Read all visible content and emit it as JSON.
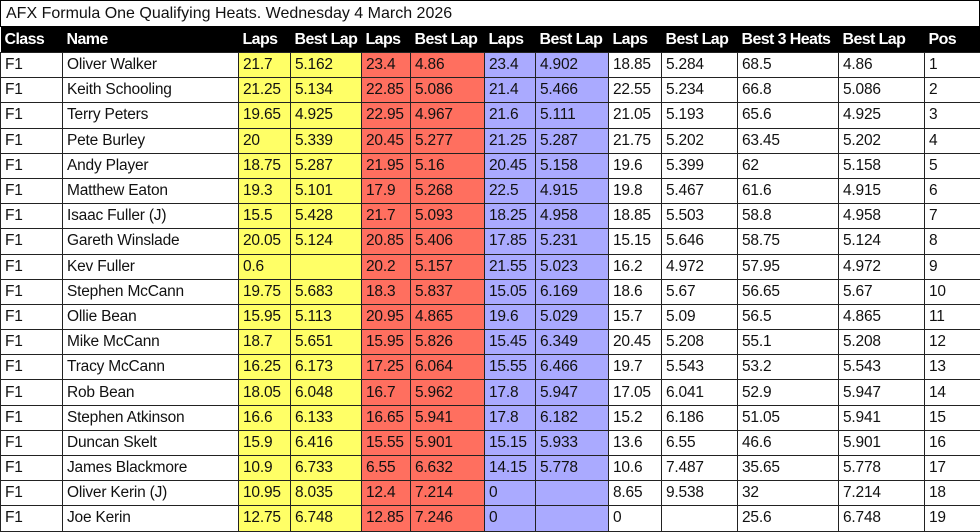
{
  "title": "AFX Formula One Qualifying Heats. Wednesday  4 March 2026",
  "colors": {
    "heat1": "#ffff66",
    "heat2": "#ff6f5f",
    "heat3": "#aaaaff"
  },
  "columns": [
    "Class",
    "Name",
    "Laps",
    "Best Lap",
    "Laps",
    "Best Lap",
    "Laps",
    "Best Lap",
    "Laps",
    "Best Lap",
    "Best 3 Heats",
    "Best Lap",
    "Pos"
  ],
  "rows": [
    [
      "F1",
      "Oliver Walker",
      "21.7",
      "5.162",
      "23.4",
      "4.86",
      "23.4",
      "4.902",
      "18.85",
      "5.284",
      "68.5",
      "4.86",
      "1"
    ],
    [
      "F1",
      "Keith Schooling",
      "21.25",
      "5.134",
      "22.85",
      "5.086",
      "21.4",
      "5.466",
      "22.55",
      "5.234",
      "66.8",
      "5.086",
      "2"
    ],
    [
      "F1",
      "Terry Peters",
      "19.65",
      "4.925",
      "22.95",
      "4.967",
      "21.6",
      "5.111",
      "21.05",
      "5.193",
      "65.6",
      "4.925",
      "3"
    ],
    [
      "F1",
      "Pete Burley",
      "20",
      "5.339",
      "20.45",
      "5.277",
      "21.25",
      "5.287",
      "21.75",
      "5.202",
      "63.45",
      "5.202",
      "4"
    ],
    [
      "F1",
      "Andy Player",
      "18.75",
      "5.287",
      "21.95",
      "5.16",
      "20.45",
      "5.158",
      "19.6",
      "5.399",
      "62",
      "5.158",
      "5"
    ],
    [
      "F1",
      "Matthew Eaton",
      "19.3",
      "5.101",
      "17.9",
      "5.268",
      "22.5",
      "4.915",
      "19.8",
      "5.467",
      "61.6",
      "4.915",
      "6"
    ],
    [
      "F1",
      "Isaac Fuller (J)",
      "15.5",
      "5.428",
      "21.7",
      "5.093",
      "18.25",
      "4.958",
      "18.85",
      "5.503",
      "58.8",
      "4.958",
      "7"
    ],
    [
      "F1",
      "Gareth Winslade",
      "20.05",
      "5.124",
      "20.85",
      "5.406",
      "17.85",
      "5.231",
      "15.15",
      "5.646",
      "58.75",
      "5.124",
      "8"
    ],
    [
      "F1",
      "Kev Fuller",
      "0.6",
      "",
      "20.2",
      "5.157",
      "21.55",
      "5.023",
      "16.2",
      "4.972",
      "57.95",
      "4.972",
      "9"
    ],
    [
      "F1",
      "Stephen McCann",
      "19.75",
      "5.683",
      "18.3",
      "5.837",
      "15.05",
      "6.169",
      "18.6",
      "5.67",
      "56.65",
      "5.67",
      "10"
    ],
    [
      "F1",
      "Ollie Bean",
      "15.95",
      "5.113",
      "20.95",
      "4.865",
      "19.6",
      "5.029",
      "15.7",
      "5.09",
      "56.5",
      "4.865",
      "11"
    ],
    [
      "F1",
      "Mike McCann",
      "18.7",
      "5.651",
      "15.95",
      "5.826",
      "15.45",
      "6.349",
      "20.45",
      "5.208",
      "55.1",
      "5.208",
      "12"
    ],
    [
      "F1",
      "Tracy McCann",
      "16.25",
      "6.173",
      "17.25",
      "6.064",
      "15.55",
      "6.466",
      "19.7",
      "5.543",
      "53.2",
      "5.543",
      "13"
    ],
    [
      "F1",
      "Rob Bean",
      "18.05",
      "6.048",
      "16.7",
      "5.962",
      "17.8",
      "5.947",
      "17.05",
      "6.041",
      "52.9",
      "5.947",
      "14"
    ],
    [
      "F1",
      "Stephen Atkinson",
      "16.6",
      "6.133",
      "16.65",
      "5.941",
      "17.8",
      "6.182",
      "15.2",
      "6.186",
      "51.05",
      "5.941",
      "15"
    ],
    [
      "F1",
      "Duncan Skelt",
      "15.9",
      "6.416",
      "15.55",
      "5.901",
      "15.15",
      "5.933",
      "13.6",
      "6.55",
      "46.6",
      "5.901",
      "16"
    ],
    [
      "F1",
      "James Blackmore",
      "10.9",
      "6.733",
      "6.55",
      "6.632",
      "14.15",
      "5.778",
      "10.6",
      "7.487",
      "35.65",
      "5.778",
      "17"
    ],
    [
      "F1",
      "Oliver Kerin (J)",
      "10.95",
      "8.035",
      "12.4",
      "7.214",
      "0",
      "",
      "8.65",
      "9.538",
      "32",
      "7.214",
      "18"
    ],
    [
      "F1",
      "Joe Kerin",
      "12.75",
      "6.748",
      "12.85",
      "7.246",
      "0",
      "",
      "0",
      "",
      "25.6",
      "6.748",
      "19"
    ]
  ]
}
